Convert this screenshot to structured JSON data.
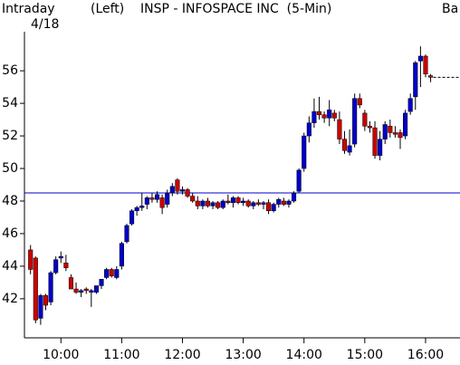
{
  "chart_data": {
    "type": "candlestick",
    "header": {
      "label": "Intraday",
      "date": "4/18",
      "axis_side": "(Left)",
      "title": "INSP - INFOSPACE INC  (5-Min)",
      "cut_label": "Ba"
    },
    "x": [
      570,
      575,
      580,
      585,
      590,
      595,
      600,
      605,
      610,
      615,
      620,
      625,
      630,
      635,
      640,
      645,
      650,
      655,
      660,
      665,
      670,
      675,
      680,
      685,
      690,
      695,
      700,
      705,
      710,
      715,
      720,
      725,
      730,
      735,
      740,
      745,
      750,
      755,
      760,
      765,
      770,
      775,
      780,
      785,
      790,
      795,
      800,
      805,
      810,
      815,
      820,
      825,
      830,
      835,
      840,
      845,
      850,
      855,
      860,
      865,
      870,
      875,
      880,
      885,
      890,
      895,
      900,
      905,
      910,
      915,
      920,
      925,
      930,
      935,
      940,
      945,
      950,
      955,
      960,
      965
    ],
    "open": [
      45,
      44.5,
      40.8,
      42.2,
      41.8,
      43.6,
      44.5,
      44.2,
      43.3,
      42.6,
      42.4,
      42.6,
      42.4,
      42.4,
      42.8,
      43.3,
      43.8,
      43.3,
      44,
      45.5,
      46.6,
      47.4,
      47.6,
      47.8,
      48.2,
      48.1,
      48.2,
      47.8,
      48.5,
      49.3,
      48.6,
      48.7,
      48.3,
      48.0,
      47.7,
      48,
      47.7,
      47.9,
      47.6,
      48,
      47.9,
      48.2,
      47.9,
      48.0,
      47.7,
      47.9,
      47.8,
      47.9,
      47.4,
      47.8,
      48,
      47.8,
      48,
      48.6,
      50,
      52,
      52.8,
      53.5,
      53.3,
      53.1,
      53.4,
      53,
      51.8,
      51,
      51.5,
      54.3,
      53.4,
      52.6,
      52.5,
      50.8,
      51.8,
      52.6,
      52.2,
      52.2,
      52,
      53.5,
      54.4,
      56.6,
      56.9,
      55.7
    ],
    "high": [
      45.3,
      44.6,
      42.3,
      42.3,
      43.7,
      44.6,
      44.9,
      44.7,
      43.5,
      43,
      42.6,
      42.7,
      42.6,
      42.8,
      43.2,
      43.9,
      43.9,
      44,
      45.5,
      46.6,
      47.5,
      47.7,
      48.5,
      48.3,
      48.5,
      48.6,
      48.4,
      48.7,
      49.1,
      49.4,
      48.9,
      48.8,
      48.5,
      48.3,
      48.1,
      48.2,
      48,
      48,
      48.1,
      48.4,
      48.3,
      48.3,
      48.2,
      48.1,
      48.0,
      48.1,
      48.0,
      48.1,
      47.9,
      48.2,
      48.2,
      48.1,
      48.6,
      50,
      52.2,
      53.2,
      54.3,
      54.4,
      53.5,
      54.2,
      53.6,
      53.5,
      52.3,
      52.4,
      54.6,
      54.6,
      53.6,
      52.9,
      52.9,
      52.3,
      52.9,
      53,
      52.6,
      52.4,
      53.6,
      54.6,
      56.6,
      57.5,
      57,
      55.8
    ],
    "low": [
      43.5,
      40.5,
      40.4,
      41.3,
      41.6,
      43.5,
      44.2,
      43.7,
      42.6,
      42.3,
      42.1,
      42.3,
      41.5,
      42.3,
      42.6,
      43.2,
      43.3,
      43.2,
      43.8,
      45.4,
      46.5,
      47.1,
      47.4,
      47.5,
      47.9,
      47.9,
      47.2,
      47.6,
      48.3,
      48.4,
      48.4,
      48.2,
      47.9,
      47.5,
      47.5,
      47.6,
      47.5,
      47.5,
      47.5,
      47.8,
      47.6,
      47.8,
      47.7,
      47.6,
      47.5,
      47.7,
      47.5,
      47.2,
      47.3,
      47.6,
      47.7,
      47.6,
      47.9,
      48.5,
      49.8,
      51.6,
      52.5,
      53,
      52.8,
      52.6,
      52.9,
      51.5,
      50.9,
      50.8,
      51.3,
      53.7,
      52.3,
      52.2,
      50.6,
      50.5,
      51.5,
      51.9,
      51.9,
      51.2,
      51.8,
      53.3,
      53.6,
      55,
      55.6,
      55.3
    ],
    "close": [
      43.8,
      40.7,
      42.2,
      41.6,
      43.6,
      44.4,
      44.6,
      43.9,
      42.6,
      42.4,
      42.5,
      42.5,
      42.5,
      42.8,
      43.2,
      43.8,
      43.4,
      43.8,
      45.4,
      46.5,
      47.4,
      47.6,
      47.7,
      48.2,
      48.1,
      48.4,
      47.6,
      48.5,
      48.9,
      48.6,
      48.7,
      48.3,
      48.0,
      47.7,
      48.0,
      47.7,
      47.9,
      47.6,
      48.0,
      47.9,
      48.2,
      47.9,
      48.0,
      47.7,
      47.9,
      47.8,
      47.9,
      47.4,
      47.8,
      48.1,
      47.8,
      48.0,
      48.5,
      49.9,
      52,
      52.8,
      53.5,
      53.3,
      53.1,
      53.6,
      53.1,
      51.8,
      51.1,
      51.4,
      54.3,
      53.9,
      52.6,
      52.5,
      50.8,
      51.8,
      52.7,
      52.2,
      52.1,
      51.9,
      53.4,
      54.3,
      56.5,
      56.9,
      55.8,
      55.6
    ],
    "up_color": "#0000cc",
    "down_color": "#cc0000",
    "reference_line": 48.5,
    "reference_color": "#0000cc",
    "xlim": [
      564,
      994
    ],
    "xticks": [
      {
        "value": 600,
        "label": "10:00"
      },
      {
        "value": 660,
        "label": "11:00"
      },
      {
        "value": 720,
        "label": "12:00"
      },
      {
        "value": 780,
        "label": "13:00"
      },
      {
        "value": 840,
        "label": "14:00"
      },
      {
        "value": 900,
        "label": "15:00"
      },
      {
        "value": 960,
        "label": "16:00"
      }
    ],
    "ylim": [
      39.6,
      58.4
    ],
    "yticks": [
      42,
      44,
      46,
      48,
      50,
      52,
      54,
      56
    ]
  }
}
